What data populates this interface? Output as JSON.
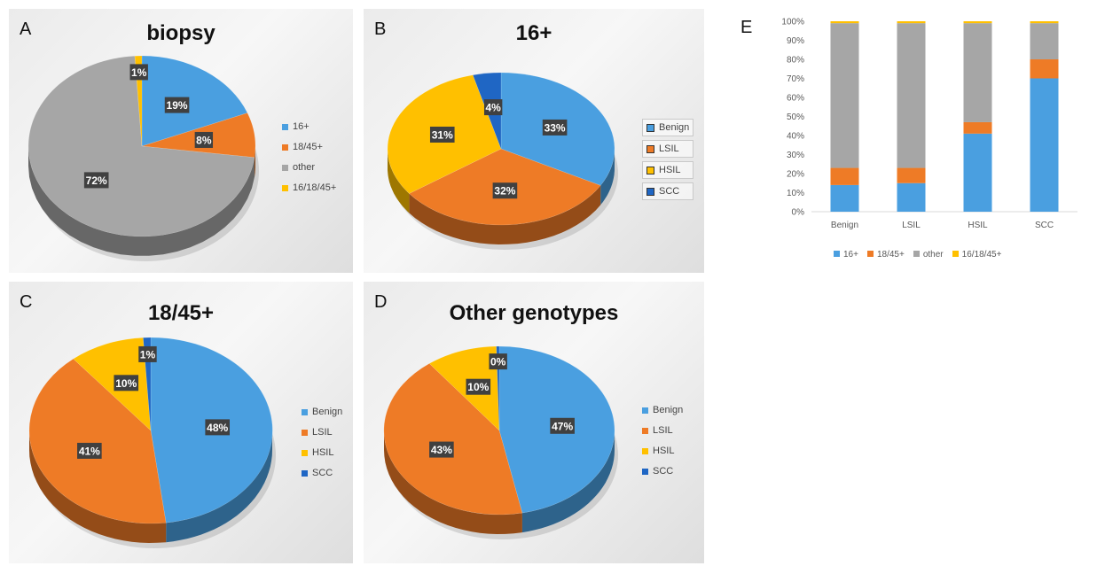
{
  "colors": {
    "blue": "#4a9fe0",
    "orange": "#ee7b26",
    "gray": "#a6a6a6",
    "yellow": "#ffc000",
    "darkblue": "#1f66c4"
  },
  "chart_data": [
    {
      "panel": "A",
      "title": "biopsy",
      "type": "pie",
      "series": [
        {
          "name": "16+",
          "value": 19,
          "label": "19%",
          "color": "#4a9fe0"
        },
        {
          "name": "18/45+",
          "value": 8,
          "label": "8%",
          "color": "#ee7b26"
        },
        {
          "name": "other",
          "value": 72,
          "label": "72%",
          "color": "#a6a6a6"
        },
        {
          "name": "16/18/45+",
          "value": 1,
          "label": "1%",
          "color": "#ffc000"
        }
      ],
      "legend": "right"
    },
    {
      "panel": "B",
      "title": "16+",
      "type": "pie",
      "series": [
        {
          "name": "Benign",
          "value": 33,
          "label": "33%",
          "color": "#4a9fe0"
        },
        {
          "name": "LSIL",
          "value": 32,
          "label": "32%",
          "color": "#ee7b26"
        },
        {
          "name": "HSIL",
          "value": 31,
          "label": "31%",
          "color": "#ffc000"
        },
        {
          "name": "SCC",
          "value": 4,
          "label": "4%",
          "color": "#1f66c4"
        }
      ],
      "legend": "right"
    },
    {
      "panel": "C",
      "title": "18/45+",
      "type": "pie",
      "series": [
        {
          "name": "Benign",
          "value": 48,
          "label": "48%",
          "color": "#4a9fe0"
        },
        {
          "name": "LSIL",
          "value": 41,
          "label": "41%",
          "color": "#ee7b26"
        },
        {
          "name": "HSIL",
          "value": 10,
          "label": "10%",
          "color": "#ffc000"
        },
        {
          "name": "SCC",
          "value": 1,
          "label": "1%",
          "color": "#1f66c4"
        }
      ],
      "legend": "right"
    },
    {
      "panel": "D",
      "title": "Other genotypes",
      "type": "pie",
      "series": [
        {
          "name": "Benign",
          "value": 47,
          "label": "47%",
          "color": "#4a9fe0"
        },
        {
          "name": "LSIL",
          "value": 43,
          "label": "43%",
          "color": "#ee7b26"
        },
        {
          "name": "HSIL",
          "value": 10,
          "label": "10%",
          "color": "#ffc000"
        },
        {
          "name": "SCC",
          "value": 0.4,
          "label": "0%",
          "color": "#1f66c4"
        }
      ],
      "legend": "right"
    },
    {
      "panel": "E",
      "type": "bar",
      "stacked": true,
      "percent": true,
      "categories": [
        "Benign",
        "LSIL",
        "HSIL",
        "SCC"
      ],
      "series": [
        {
          "name": "16+",
          "values": [
            14,
            15,
            41,
            70
          ],
          "color": "#4a9fe0"
        },
        {
          "name": "18/45+",
          "values": [
            9,
            8,
            6,
            10
          ],
          "color": "#ee7b26"
        },
        {
          "name": "other",
          "values": [
            76,
            76,
            52,
            19
          ],
          "color": "#a6a6a6"
        },
        {
          "name": "16/18/45+",
          "values": [
            1,
            1,
            1,
            1
          ],
          "color": "#ffc000"
        }
      ],
      "ylim": [
        0,
        100
      ],
      "yticks": [
        "0%",
        "10%",
        "20%",
        "30%",
        "40%",
        "50%",
        "60%",
        "70%",
        "80%",
        "90%",
        "100%"
      ],
      "grid": false,
      "legend": "bottom"
    }
  ]
}
